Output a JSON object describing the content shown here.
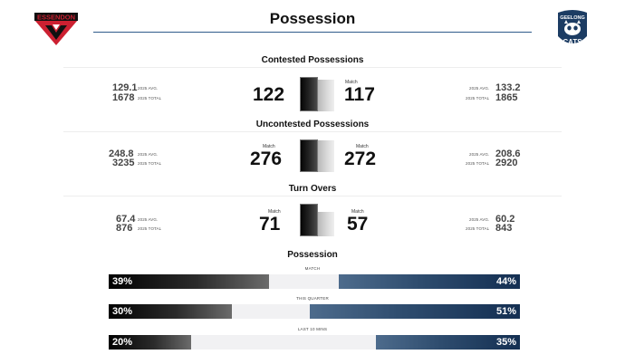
{
  "header": {
    "title": "Possession",
    "home_logo_text": "ESSENDON",
    "away_logo_text_top": "GEELONG",
    "away_logo_text_bottom": "CATS"
  },
  "labels": {
    "avg": "2025 AVG.",
    "total": "2025 TOTAL",
    "match": "Match"
  },
  "stats": [
    {
      "title": "Contested Possessions",
      "home": {
        "avg": "129.1",
        "total": "1678",
        "match": "122"
      },
      "away": {
        "avg": "133.2",
        "total": "1865",
        "match": "117"
      }
    },
    {
      "title": "Uncontested Possessions",
      "home": {
        "avg": "248.8",
        "total": "3235",
        "match": "276"
      },
      "away": {
        "avg": "208.6",
        "total": "2920",
        "match": "272"
      }
    },
    {
      "title": "Turn Overs",
      "home": {
        "avg": "67.4",
        "total": "876",
        "match": "71"
      },
      "away": {
        "avg": "60.2",
        "total": "843",
        "match": "57"
      }
    }
  ],
  "possession": {
    "title": "Possession",
    "bars": [
      {
        "caption": "MATCH",
        "home_label": "39%",
        "away_label": "44%",
        "home": 39,
        "away": 44
      },
      {
        "caption": "THIS QUARTER",
        "home_label": "30%",
        "away_label": "51%",
        "home": 30,
        "away": 51
      },
      {
        "caption": "LAST 10 MINS",
        "home_label": "20%",
        "away_label": "35%",
        "home": 20,
        "away": 35
      }
    ]
  },
  "colors": {
    "home_primary": "#cc2031",
    "away_primary": "#1c3c63",
    "rule": "#2f5b8a"
  }
}
